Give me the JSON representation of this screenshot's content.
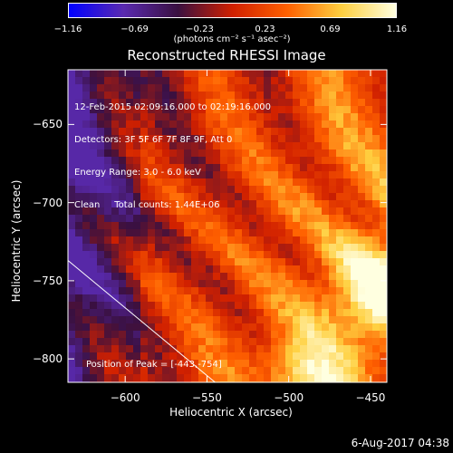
{
  "colorbar": {
    "min": -1.16,
    "max": 1.16,
    "tick_labels": [
      "−1.16",
      "−0.69",
      "−0.23",
      "0.23",
      "0.69",
      "1.16"
    ],
    "tick_values": [
      -1.16,
      -0.69,
      -0.23,
      0.23,
      0.69,
      1.16
    ],
    "unit": "(photons cm⁻² s⁻¹ asec⁻²)"
  },
  "title": "Reconstructed RHESSI Image",
  "info": {
    "time_range": "12-Feb-2015 02:09:16.000 to 02:19:16.000",
    "detectors": "Detectors: 3F 5F 6F 7F 8F 9F, Att 0",
    "energy_range": "Energy Range: 3.0 - 6.0 keV",
    "method": "Clean     Total counts: 1.44E+06"
  },
  "peak_text": "Position of Peak = [-443,-754]",
  "axes": {
    "xlabel": "Heliocentric X (arcsec)",
    "ylabel": "Heliocentric Y (arcsec)",
    "x_range": [
      -635,
      -440
    ],
    "y_range": [
      -815,
      -615
    ],
    "x_ticks": [
      -600,
      -550,
      -500,
      -450
    ],
    "x_tick_labels": [
      "−600",
      "−550",
      "−500",
      "−450"
    ],
    "y_ticks": [
      -650,
      -700,
      -750,
      -800
    ],
    "y_tick_labels": [
      "−650",
      "−700",
      "−750",
      "−800"
    ]
  },
  "limb_line": {
    "x1": -635,
    "y1": -737,
    "x2": -545,
    "y2": -815
  },
  "timestamp": "6-Aug-2017 04:38",
  "colors": {
    "cmap": [
      "#0000ff",
      "#5a2ab0",
      "#3a1040",
      "#d02000",
      "#ff6000",
      "#ffd040",
      "#ffffe0"
    ],
    "box": "#ffffff"
  }
}
